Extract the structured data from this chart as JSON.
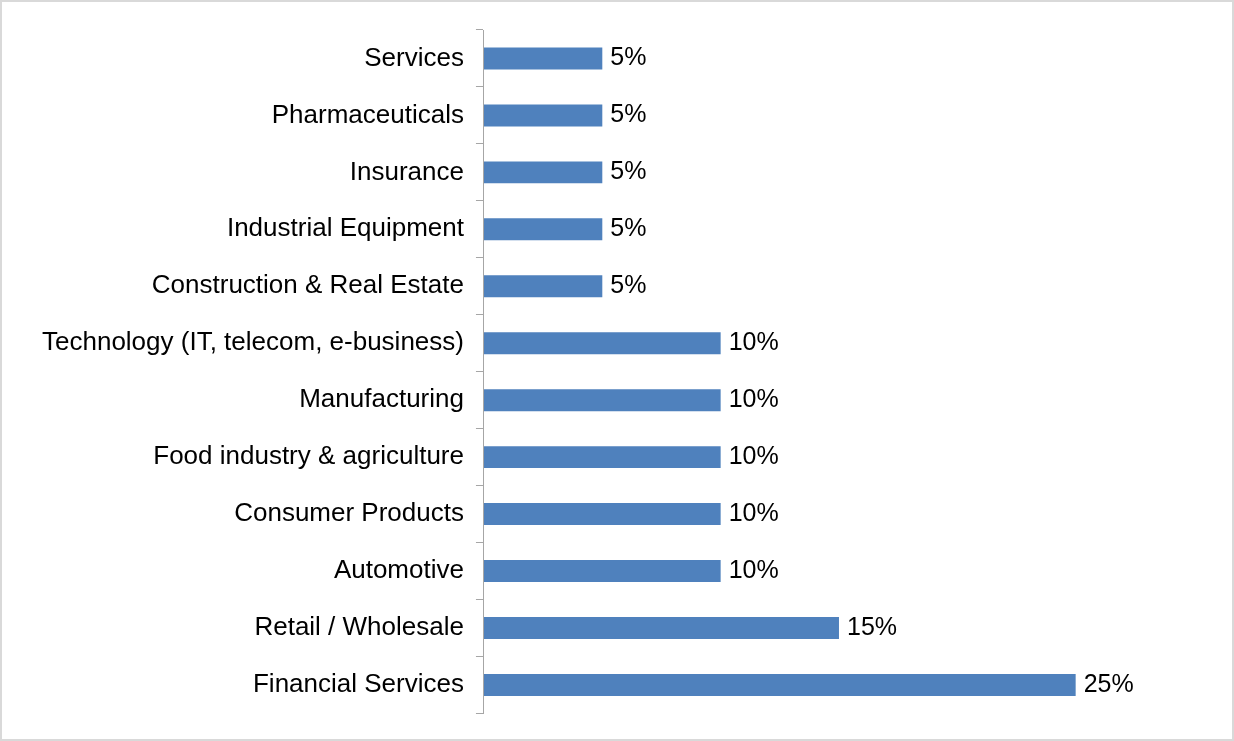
{
  "chart_data": {
    "type": "bar",
    "orientation": "horizontal",
    "categories": [
      "Services",
      "Pharmaceuticals",
      "Insurance",
      "Industrial Equipment",
      "Construction & Real Estate",
      "Technology (IT, telecom, e-business)",
      "Manufacturing",
      "Food industry & agriculture",
      "Consumer Products",
      "Automotive",
      "Retail / Wholesale",
      "Financial Services"
    ],
    "values": [
      5,
      5,
      5,
      5,
      5,
      10,
      10,
      10,
      10,
      10,
      15,
      25
    ],
    "value_labels": [
      "5%",
      "5%",
      "5%",
      "5%",
      "5%",
      "10%",
      "10%",
      "10%",
      "10%",
      "10%",
      "15%",
      "25%"
    ],
    "color": "#4f81bd"
  }
}
